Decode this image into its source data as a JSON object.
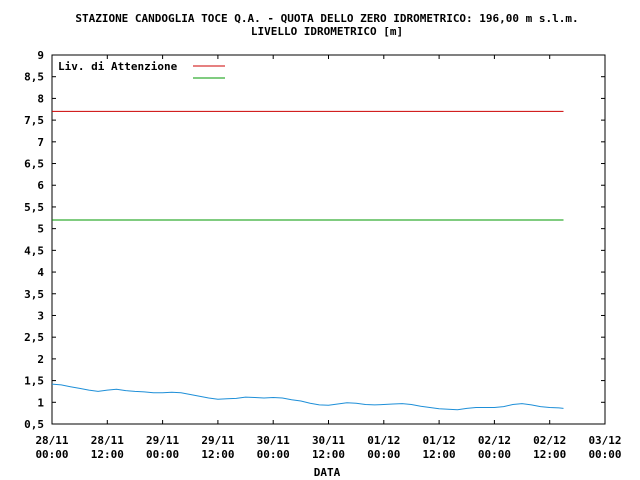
{
  "chart_data": {
    "type": "line",
    "title": "STAZIONE CANDOGLIA TOCE Q.A. - QUOTA DELLO ZERO IDROMETRICO: 196,00 m s.l.m.",
    "subtitle": "LIVELLO IDROMETRICO [m]",
    "xlabel": "DATA",
    "ylabel": "",
    "ylim": [
      0.5,
      9
    ],
    "yticks": [
      "0,5",
      "1",
      "1,5",
      "2",
      "2,5",
      "3",
      "3,5",
      "4",
      "4,5",
      "5",
      "5,5",
      "6",
      "6,5",
      "7",
      "7,5",
      "8",
      "8,5",
      "9"
    ],
    "xlim_hours": [
      0,
      120
    ],
    "xticks": [
      {
        "date": "28/11",
        "time": "00:00"
      },
      {
        "date": "28/11",
        "time": "12:00"
      },
      {
        "date": "29/11",
        "time": "00:00"
      },
      {
        "date": "29/11",
        "time": "12:00"
      },
      {
        "date": "30/11",
        "time": "00:00"
      },
      {
        "date": "30/11",
        "time": "12:00"
      },
      {
        "date": "01/12",
        "time": "00:00"
      },
      {
        "date": "01/12",
        "time": "12:00"
      },
      {
        "date": "02/12",
        "time": "00:00"
      },
      {
        "date": "02/12",
        "time": "12:00"
      },
      {
        "date": "03/12",
        "time": "00:00"
      }
    ],
    "legend": {
      "placement": "top-left",
      "entries": [
        {
          "label": "Liv. di Attenzione",
          "color": "#cc0000"
        },
        {
          "label": "",
          "color": "#009900"
        }
      ]
    },
    "grid": false,
    "series": [
      {
        "color": "#cc0000",
        "x": [
          0,
          111
        ],
        "values": [
          7.7,
          7.7
        ]
      },
      {
        "color": "#009900",
        "x": [
          0,
          111
        ],
        "values": [
          5.2,
          5.2
        ]
      },
      {
        "color": "#1e8fd8",
        "x": [
          0,
          2,
          4,
          6,
          8,
          10,
          12,
          14,
          16,
          18,
          20,
          22,
          24,
          26,
          28,
          30,
          32,
          34,
          36,
          38,
          40,
          42,
          44,
          46,
          48,
          50,
          52,
          54,
          56,
          58,
          60,
          62,
          64,
          66,
          68,
          70,
          72,
          74,
          76,
          78,
          80,
          82,
          84,
          86,
          88,
          90,
          92,
          94,
          96,
          98,
          100,
          102,
          104,
          106,
          108,
          110,
          111
        ],
        "values": [
          1.42,
          1.4,
          1.36,
          1.32,
          1.28,
          1.25,
          1.28,
          1.3,
          1.27,
          1.25,
          1.24,
          1.22,
          1.22,
          1.23,
          1.22,
          1.18,
          1.14,
          1.1,
          1.07,
          1.08,
          1.09,
          1.12,
          1.11,
          1.1,
          1.11,
          1.1,
          1.06,
          1.03,
          0.98,
          0.94,
          0.93,
          0.96,
          0.99,
          0.98,
          0.95,
          0.94,
          0.95,
          0.96,
          0.97,
          0.95,
          0.91,
          0.88,
          0.85,
          0.84,
          0.83,
          0.86,
          0.88,
          0.88,
          0.88,
          0.9,
          0.95,
          0.97,
          0.94,
          0.9,
          0.88,
          0.87,
          0.86
        ]
      }
    ]
  }
}
